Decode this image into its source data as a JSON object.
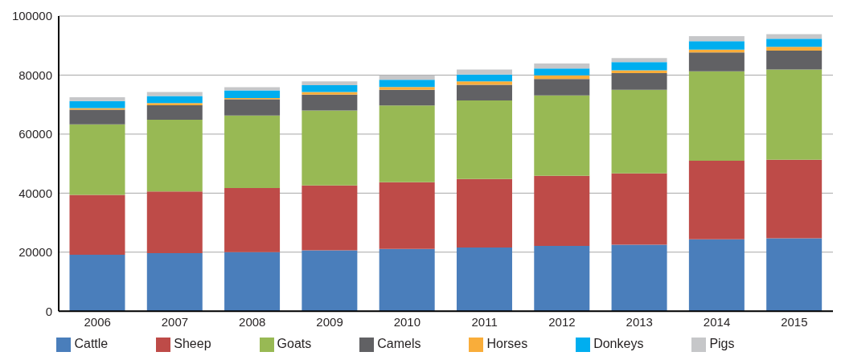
{
  "chart_data": {
    "type": "bar",
    "stacked": true,
    "categories": [
      "2006",
      "2007",
      "2008",
      "2009",
      "2010",
      "2011",
      "2012",
      "2013",
      "2014",
      "2015"
    ],
    "series": [
      {
        "name": "Cattle",
        "color": "#4a7ebb",
        "values": [
          19100,
          19700,
          20000,
          20600,
          21100,
          21600,
          22100,
          22500,
          24400,
          24700
        ]
      },
      {
        "name": "Sheep",
        "color": "#be4b48",
        "values": [
          20300,
          20900,
          21700,
          22000,
          22600,
          23200,
          23800,
          24200,
          26600,
          26600
        ]
      },
      {
        "name": "Goats",
        "color": "#98b954",
        "values": [
          23900,
          24300,
          24600,
          25400,
          26000,
          26600,
          27200,
          28300,
          30300,
          30600
        ]
      },
      {
        "name": "Camels",
        "color": "#616164",
        "values": [
          5000,
          4900,
          5500,
          5400,
          5300,
          5300,
          5600,
          5700,
          6400,
          6400
        ]
      },
      {
        "name": "Horses",
        "color": "#f9ad3a",
        "values": [
          500,
          700,
          400,
          900,
          1000,
          1200,
          1200,
          900,
          900,
          1300
        ]
      },
      {
        "name": "Donkeys",
        "color": "#00aeef",
        "values": [
          2400,
          2400,
          2600,
          2300,
          2400,
          2300,
          2300,
          2800,
          2900,
          2700
        ]
      },
      {
        "name": "Pigs",
        "color": "#c6c7c9",
        "values": [
          1300,
          1400,
          1100,
          1300,
          1500,
          1700,
          1700,
          1400,
          1700,
          1600
        ]
      }
    ],
    "ylim": [
      0,
      100000
    ],
    "yticks": [
      0,
      20000,
      40000,
      60000,
      80000,
      100000
    ],
    "grid": "y",
    "legend": "bottom"
  }
}
